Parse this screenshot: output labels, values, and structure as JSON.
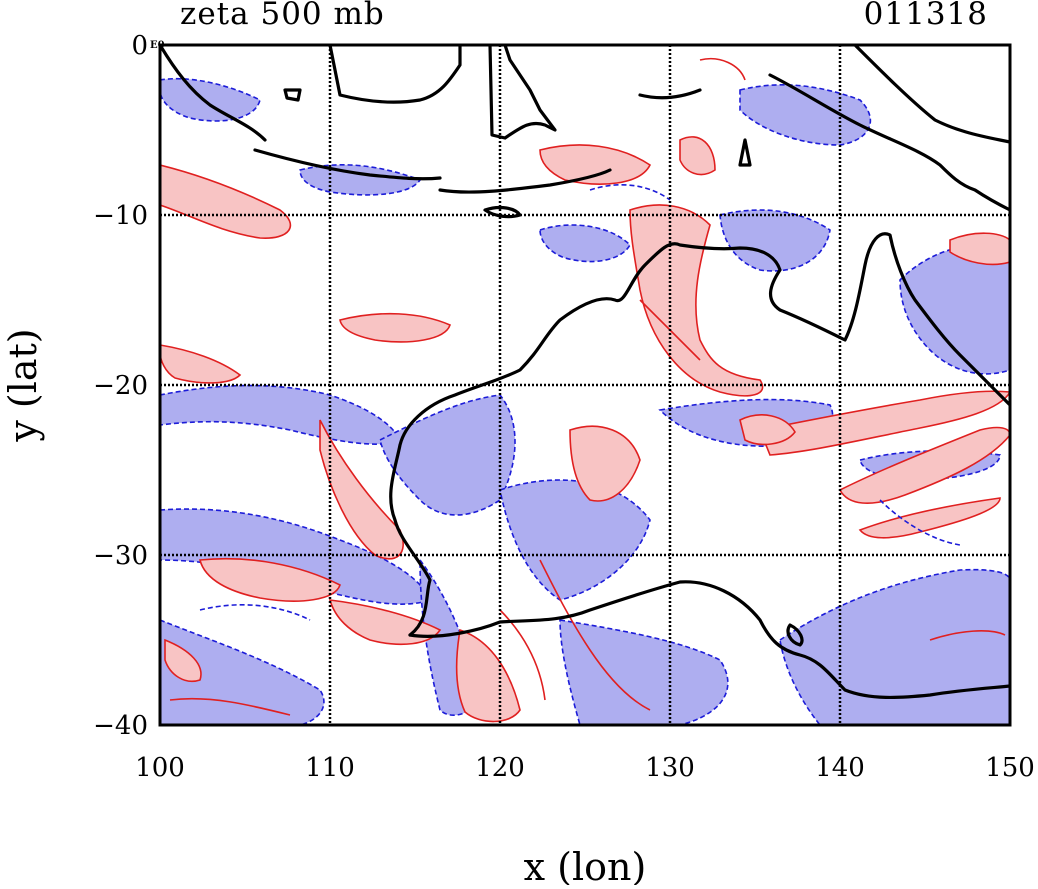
{
  "title": "zeta 500 mb",
  "timestamp": "011318",
  "x_axis": {
    "label": "x (lon)",
    "ticks": [
      "100",
      "110",
      "120",
      "130",
      "140",
      "150"
    ],
    "range": [
      100,
      150
    ]
  },
  "y_axis": {
    "label": "y (lat)",
    "ticks": [
      "0",
      "−10",
      "−20",
      "−30",
      "−40"
    ],
    "range": [
      -40,
      0
    ]
  },
  "zero_tick_suffix": "E0",
  "colors": {
    "positive_fill": "#f8c4c4",
    "positive_contour": "#e02020",
    "negative_fill": "#aeaef0",
    "negative_contour": "#1c1cd8",
    "coastline": "#000000"
  }
}
